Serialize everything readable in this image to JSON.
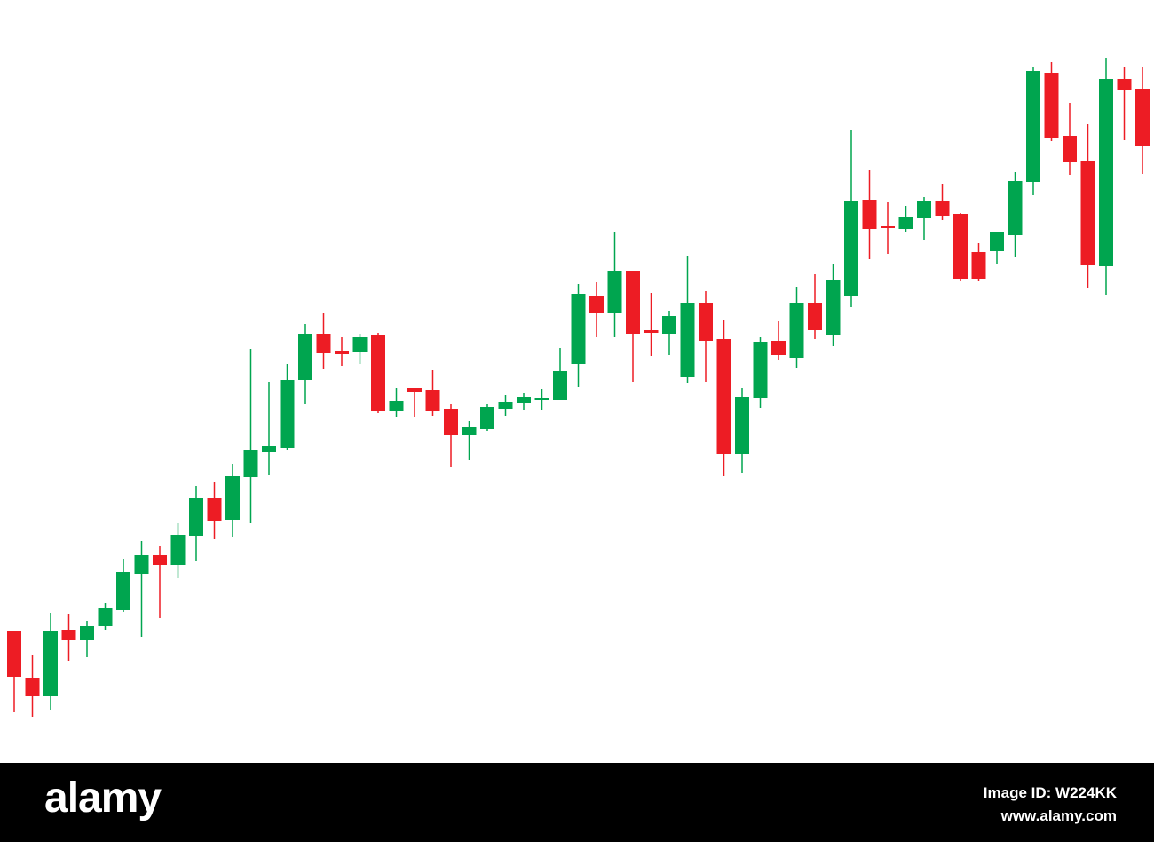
{
  "chart_data": {
    "type": "candlestick",
    "up_color": "#00a54f",
    "down_color": "#ed1c24",
    "ylim": [
      0,
      860
    ],
    "open": [
      149,
      96,
      76,
      150,
      139,
      155,
      173,
      213,
      234,
      223,
      256,
      299,
      274,
      322,
      351,
      355,
      432,
      483,
      464,
      463,
      482,
      397,
      423,
      420,
      399,
      370,
      377,
      399,
      406,
      409,
      409,
      450,
      526,
      507,
      554,
      488,
      484,
      435,
      518,
      478,
      348,
      411,
      476,
      457,
      518,
      482,
      526,
      635,
      605,
      602,
      614,
      634,
      619,
      576,
      577,
      595,
      655,
      778,
      707,
      679,
      560,
      771,
      760
    ],
    "high": [
      149,
      122,
      169,
      168,
      160,
      180,
      230,
      250,
      245,
      270,
      312,
      317,
      337,
      467,
      430,
      450,
      495,
      507,
      480,
      483,
      485,
      423,
      423,
      443,
      405,
      385,
      405,
      415,
      417,
      422,
      468,
      540,
      542,
      598,
      555,
      530,
      510,
      571,
      532,
      499,
      423,
      480,
      498,
      537,
      551,
      562,
      713,
      668,
      632,
      628,
      638,
      653,
      620,
      586,
      598,
      666,
      785,
      790,
      744,
      720,
      795,
      785,
      785
    ],
    "low": [
      58,
      52,
      60,
      115,
      120,
      150,
      170,
      142,
      163,
      208,
      228,
      253,
      255,
      270,
      325,
      353,
      405,
      444,
      447,
      450,
      395,
      390,
      390,
      391,
      334,
      342,
      374,
      391,
      398,
      398,
      409,
      424,
      480,
      480,
      429,
      459,
      460,
      428,
      430,
      324,
      327,
      400,
      454,
      445,
      478,
      470,
      514,
      568,
      574,
      598,
      590,
      612,
      543,
      543,
      563,
      570,
      640,
      701,
      663,
      535,
      528,
      702,
      664
    ],
    "close": [
      97,
      76,
      149,
      139,
      155,
      175,
      215,
      234,
      223,
      257,
      299,
      273,
      324,
      353,
      357,
      432,
      483,
      462,
      461,
      480,
      397,
      408,
      418,
      397,
      370,
      379,
      401,
      407,
      412,
      411,
      442,
      529,
      507,
      554,
      483,
      485,
      504,
      518,
      476,
      348,
      413,
      475,
      460,
      518,
      488,
      544,
      633,
      602,
      603,
      615,
      634,
      617,
      545,
      545,
      598,
      656,
      780,
      705,
      677,
      561,
      771,
      758,
      695
    ]
  },
  "footer": {
    "logo": "alamy",
    "image_id": "Image ID: W224KK",
    "url": "www.alamy.com"
  }
}
